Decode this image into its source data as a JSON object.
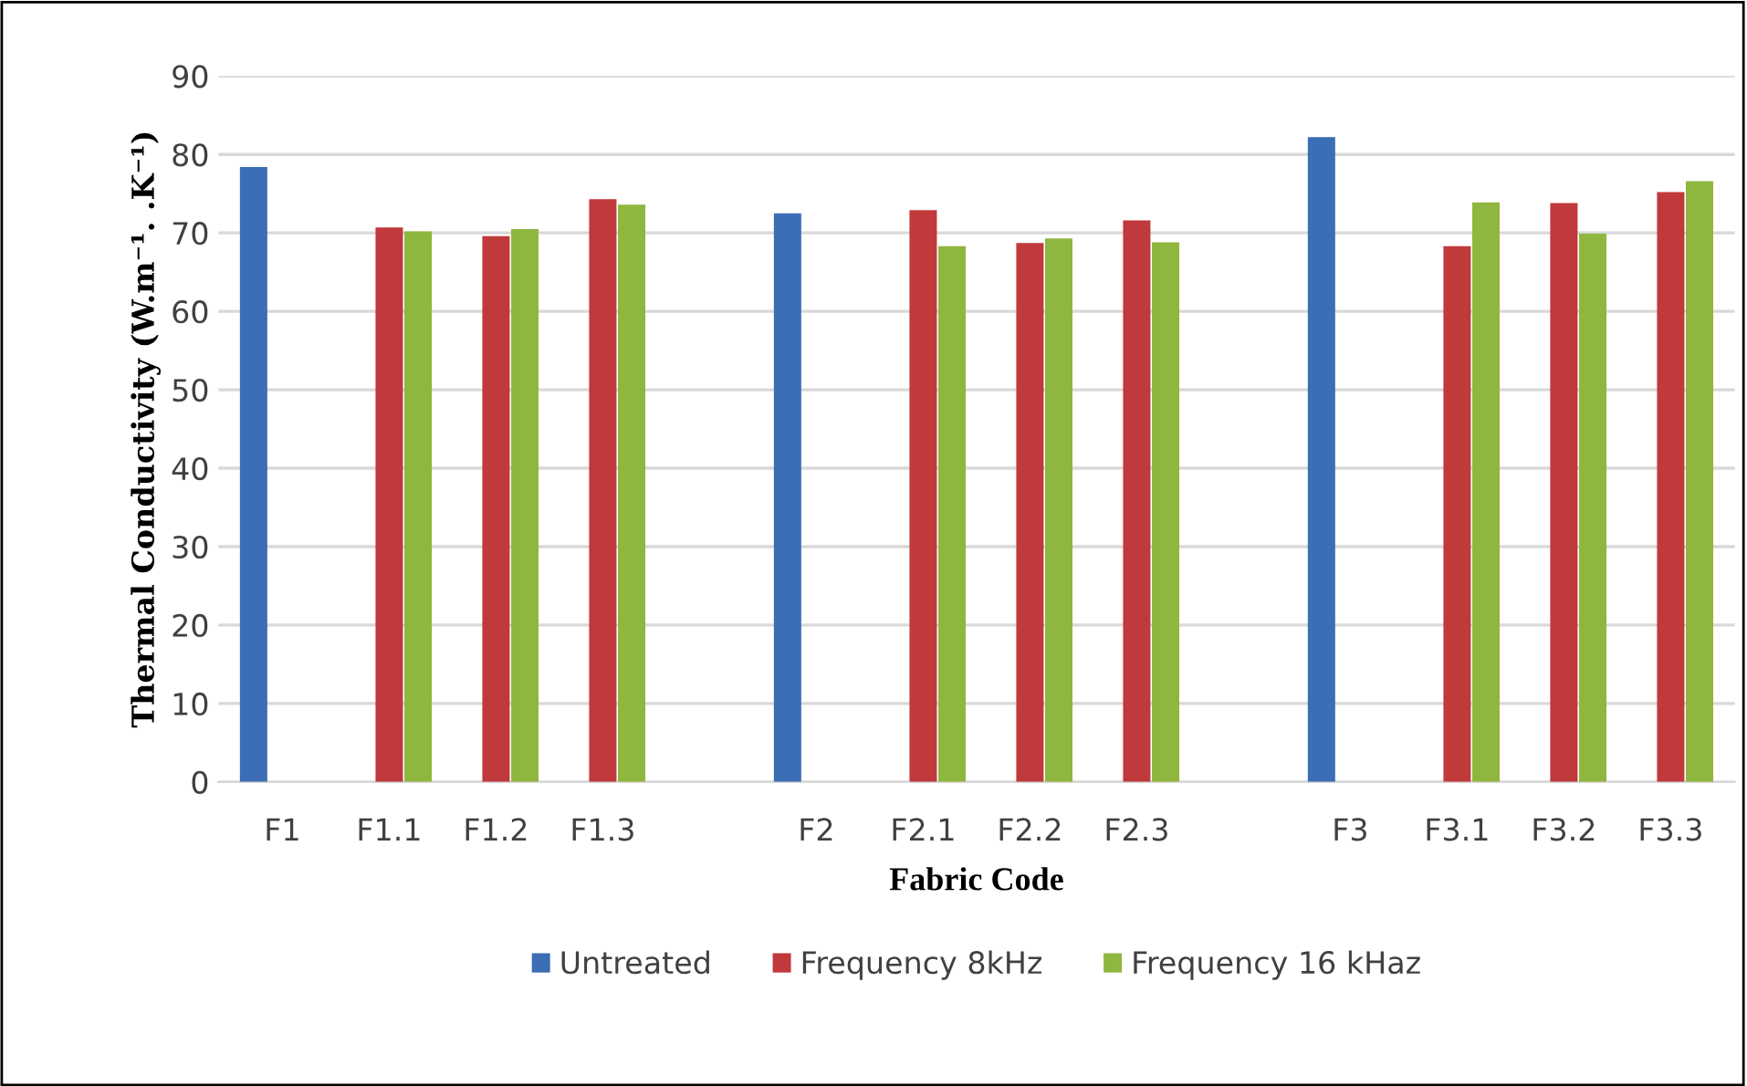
{
  "chart_data": {
    "type": "bar",
    "xlabel": "Fabric Code",
    "ylabel": "Thermal Conductivity (W.m⁻¹. .K⁻¹)",
    "categories": [
      "F1",
      "F1.1",
      "F1.2",
      "F1.3",
      null,
      "F2",
      "F2.1",
      "F2.2",
      "F2.3",
      null,
      "F3",
      "F3.1",
      "F3.2",
      "F3.3"
    ],
    "series": [
      {
        "name": "Untreated",
        "color": "#3b6eb4",
        "values": [
          78.4,
          null,
          null,
          null,
          null,
          72.5,
          null,
          null,
          null,
          null,
          82.2,
          null,
          null,
          null
        ]
      },
      {
        "name": "Frequency 8kHz",
        "color": "#c0393b",
        "values": [
          null,
          70.7,
          69.6,
          74.3,
          null,
          null,
          72.9,
          68.7,
          71.6,
          null,
          null,
          68.3,
          73.8,
          75.2
        ]
      },
      {
        "name": "Frequency 16 kHaz",
        "color": "#8fb63e",
        "values": [
          null,
          70.2,
          70.5,
          73.6,
          null,
          null,
          68.3,
          69.3,
          68.8,
          null,
          null,
          73.9,
          69.9,
          76.6
        ]
      }
    ],
    "ylim": [
      0,
      90
    ],
    "yticks": [
      0,
      10,
      20,
      30,
      40,
      50,
      60,
      70,
      80,
      90
    ],
    "grid": "y",
    "legend": "bottom"
  }
}
